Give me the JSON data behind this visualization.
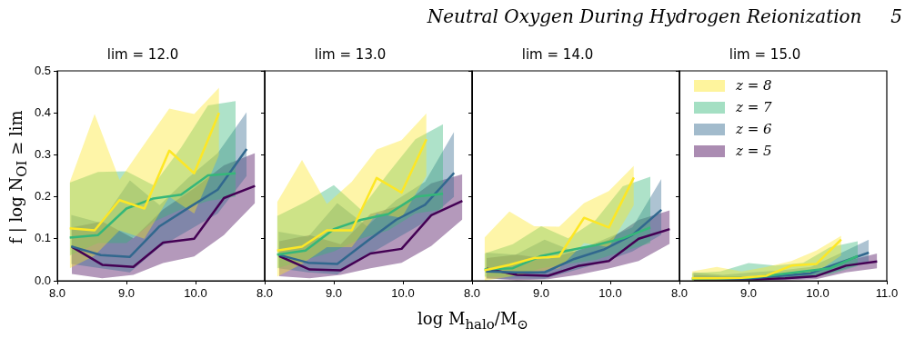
{
  "chart_data": [
    {
      "type": "line",
      "title": "lim = 12.0",
      "ylabel": "f | log N$_{OI}$ ≥ lim",
      "annotations": [
        "Neutral Oxygen During Hydrogen Reionization     5"
      ],
      "xlim": [
        8.0,
        11.0
      ],
      "xticks": [
        {
          "value": 8,
          "label": "8.0"
        },
        {
          "value": 9,
          "label": "9.0"
        },
        {
          "value": 10,
          "label": "10.0"
        },
        {
          "value": 11,
          "label": null
        }
      ],
      "ylim": [
        0,
        0.5
      ],
      "yticks": [
        {
          "value": 0,
          "label": "0.0"
        },
        {
          "value": 0.1,
          "label": "0.1"
        },
        {
          "value": 0.2,
          "label": "0.2"
        },
        {
          "value": 0.3,
          "label": "0.3"
        },
        {
          "value": 0.4,
          "label": "0.4"
        },
        {
          "value": 0.5,
          "label": "0.5"
        }
      ],
      "legend": false,
      "series": [
        {
          "color": "#fde725",
          "x": [
            8.18,
            8.54,
            8.9,
            9.26,
            9.62,
            9.98,
            10.34
          ],
          "values": [
            0.125,
            0.12,
            0.192,
            0.172,
            0.31,
            0.256,
            0.4
          ],
          "lower": [
            0.03,
            0.06,
            0.12,
            0.1,
            0.2,
            0.16,
            0.3
          ],
          "upper": [
            0.235,
            0.397,
            0.24,
            0.326,
            0.41,
            0.397,
            0.46
          ]
        },
        {
          "color": "#35b779",
          "x": [
            8.18,
            8.59,
            9.0,
            9.39,
            9.79,
            10.18,
            10.58
          ],
          "values": [
            0.103,
            0.109,
            0.172,
            0.196,
            0.205,
            0.251,
            0.256
          ],
          "lower": [
            0.06,
            0.09,
            0.09,
            0.14,
            0.17,
            0.19,
            0.2
          ],
          "upper": [
            0.234,
            0.259,
            0.261,
            0.228,
            0.317,
            0.418,
            0.428
          ]
        },
        {
          "color": "#31688e",
          "x": [
            8.2,
            8.63,
            9.05,
            9.48,
            9.9,
            10.32,
            10.74
          ],
          "values": [
            0.082,
            0.061,
            0.057,
            0.13,
            0.174,
            0.217,
            0.314
          ],
          "lower": [
            0.04,
            0.03,
            0.02,
            0.08,
            0.12,
            0.16,
            0.25
          ],
          "upper": [
            0.157,
            0.138,
            0.239,
            0.18,
            0.246,
            0.304,
            0.402
          ]
        },
        {
          "color": "#440154",
          "x": [
            8.21,
            8.65,
            9.1,
            9.53,
            9.98,
            10.41,
            10.86
          ],
          "values": [
            0.081,
            0.038,
            0.033,
            0.091,
            0.1,
            0.197,
            0.226
          ],
          "lower": [
            0.016,
            0.006,
            0.014,
            0.042,
            0.058,
            0.109,
            0.185
          ],
          "upper": [
            0.127,
            0.141,
            0.101,
            0.17,
            0.22,
            0.275,
            0.304
          ]
        }
      ]
    },
    {
      "type": "line",
      "title": "lim = 13.0",
      "xlabel": "log M$_{halo}$/M$_{⊙}$",
      "xlim": [
        8.0,
        11.0
      ],
      "xticks": [
        {
          "value": 8,
          "label": "8.0"
        },
        {
          "value": 9,
          "label": "9.0"
        },
        {
          "value": 10,
          "label": "10.0"
        },
        {
          "value": 11,
          "label": null
        }
      ],
      "ylim": [
        0,
        0.5
      ],
      "yticks": [
        0,
        0.1,
        0.2,
        0.3,
        0.4,
        0.5
      ],
      "tick_labels": "x",
      "legend": false,
      "series": [
        {
          "color": "#fde725",
          "x": [
            8.18,
            8.54,
            8.9,
            9.26,
            9.62,
            9.98,
            10.34
          ],
          "values": [
            0.072,
            0.081,
            0.12,
            0.12,
            0.245,
            0.21,
            0.337
          ],
          "lower": [
            0.01,
            0.04,
            0.08,
            0.08,
            0.16,
            0.15,
            0.25
          ],
          "upper": [
            0.187,
            0.288,
            0.183,
            0.236,
            0.313,
            0.335,
            0.399
          ]
        },
        {
          "color": "#35b779",
          "x": [
            8.18,
            8.59,
            9.0,
            9.39,
            9.79,
            10.18,
            10.58
          ],
          "values": [
            0.062,
            0.072,
            0.123,
            0.145,
            0.159,
            0.2,
            0.207
          ],
          "lower": [
            0.03,
            0.05,
            0.07,
            0.1,
            0.12,
            0.16,
            0.17
          ],
          "upper": [
            0.154,
            0.188,
            0.228,
            0.17,
            0.257,
            0.337,
            0.373
          ]
        },
        {
          "color": "#31688e",
          "x": [
            8.2,
            8.63,
            9.05,
            9.48,
            9.9,
            10.32,
            10.74
          ],
          "values": [
            0.062,
            0.043,
            0.04,
            0.094,
            0.145,
            0.181,
            0.257
          ],
          "lower": [
            0.03,
            0.02,
            0.015,
            0.06,
            0.1,
            0.14,
            0.2
          ],
          "upper": [
            0.117,
            0.105,
            0.185,
            0.13,
            0.192,
            0.236,
            0.355
          ]
        },
        {
          "color": "#440154",
          "x": [
            8.21,
            8.65,
            9.1,
            9.53,
            9.98,
            10.41,
            10.86
          ],
          "values": [
            0.059,
            0.027,
            0.025,
            0.065,
            0.076,
            0.156,
            0.19
          ],
          "lower": [
            0.011,
            0.006,
            0.014,
            0.03,
            0.043,
            0.083,
            0.146
          ],
          "upper": [
            0.094,
            0.109,
            0.087,
            0.159,
            0.18,
            0.232,
            0.254
          ]
        }
      ]
    },
    {
      "type": "line",
      "title": "lim = 14.0",
      "xlim": [
        8.0,
        11.0
      ],
      "xticks": [
        {
          "value": 8,
          "label": "8.0"
        },
        {
          "value": 9,
          "label": "9.0"
        },
        {
          "value": 10,
          "label": "10.0"
        },
        {
          "value": 11,
          "label": null
        }
      ],
      "ylim": [
        0,
        0.5
      ],
      "yticks": [
        0,
        0.1,
        0.2,
        0.3,
        0.4,
        0.5
      ],
      "tick_labels": "x",
      "legend": false,
      "series": [
        {
          "color": "#fde725",
          "x": [
            8.18,
            8.54,
            8.9,
            9.26,
            9.62,
            9.98,
            10.34
          ],
          "values": [
            0.025,
            0.038,
            0.054,
            0.058,
            0.15,
            0.127,
            0.246
          ],
          "lower": [
            0.0,
            0.01,
            0.02,
            0.03,
            0.09,
            0.08,
            0.18
          ],
          "upper": [
            0.103,
            0.165,
            0.13,
            0.129,
            0.185,
            0.214,
            0.274
          ]
        },
        {
          "color": "#35b779",
          "x": [
            8.18,
            8.59,
            9.0,
            9.39,
            9.79,
            10.18,
            10.58
          ],
          "values": [
            0.027,
            0.03,
            0.059,
            0.072,
            0.085,
            0.101,
            0.127
          ],
          "lower": [
            0.01,
            0.01,
            0.03,
            0.04,
            0.05,
            0.07,
            0.09
          ],
          "upper": [
            0.065,
            0.087,
            0.13,
            0.101,
            0.145,
            0.225,
            0.248
          ]
        },
        {
          "color": "#31688e",
          "x": [
            8.2,
            8.63,
            9.05,
            9.48,
            9.9,
            10.32,
            10.74
          ],
          "values": [
            0.022,
            0.02,
            0.02,
            0.052,
            0.074,
            0.109,
            0.169
          ],
          "lower": [
            0.005,
            0.005,
            0.005,
            0.025,
            0.045,
            0.07,
            0.11
          ],
          "upper": [
            0.067,
            0.062,
            0.098,
            0.069,
            0.098,
            0.127,
            0.243
          ]
        },
        {
          "color": "#440154",
          "x": [
            8.21,
            8.65,
            9.1,
            9.53,
            9.98,
            10.41,
            10.86
          ],
          "values": [
            0.029,
            0.014,
            0.012,
            0.035,
            0.047,
            0.1,
            0.123
          ],
          "lower": [
            0.006,
            0.001,
            0.004,
            0.014,
            0.029,
            0.047,
            0.088
          ],
          "upper": [
            0.054,
            0.062,
            0.052,
            0.072,
            0.098,
            0.145,
            0.168
          ]
        }
      ]
    },
    {
      "type": "line",
      "title": "lim = 15.0",
      "xlim": [
        8.0,
        11.0
      ],
      "xticks": [
        {
          "value": 8,
          "label": "8.0"
        },
        {
          "value": 9,
          "label": "9.0"
        },
        {
          "value": 10,
          "label": "10.0"
        },
        {
          "value": 11,
          "label": "11.0"
        }
      ],
      "ylim": [
        0,
        0.5
      ],
      "yticks": [
        0,
        0.1,
        0.2,
        0.3,
        0.4,
        0.5
      ],
      "tick_labels": "x",
      "legend": "top left",
      "series": [
        {
          "name": "z = 8",
          "color": "#fde725",
          "x": [
            8.18,
            8.54,
            8.9,
            9.26,
            9.62,
            9.98,
            10.34
          ],
          "values": [
            0.006,
            0.006,
            0.007,
            0.012,
            0.036,
            0.04,
            0.098
          ],
          "lower": [
            0.0,
            0.0,
            0.0,
            0.002,
            0.015,
            0.02,
            0.06
          ],
          "upper": [
            0.022,
            0.033,
            0.022,
            0.033,
            0.047,
            0.072,
            0.107
          ]
        },
        {
          "name": "z = 7",
          "color": "#35b779",
          "x": [
            8.18,
            8.59,
            9.0,
            9.39,
            9.79,
            10.18,
            10.58
          ],
          "values": [
            0.005,
            0.006,
            0.007,
            0.014,
            0.022,
            0.03,
            0.059
          ],
          "lower": [
            0.0,
            0.0,
            0.0,
            0.004,
            0.01,
            0.015,
            0.035
          ],
          "upper": [
            0.018,
            0.022,
            0.042,
            0.036,
            0.043,
            0.08,
            0.094
          ]
        },
        {
          "name": "z = 6",
          "color": "#31688e",
          "x": [
            8.2,
            8.63,
            9.05,
            9.48,
            9.9,
            10.32,
            10.74
          ],
          "values": [
            0.006,
            0.005,
            0.006,
            0.012,
            0.018,
            0.043,
            0.067
          ],
          "lower": [
            0.0,
            0.0,
            0.0,
            0.003,
            0.007,
            0.025,
            0.045
          ],
          "upper": [
            0.02,
            0.014,
            0.02,
            0.025,
            0.033,
            0.065,
            0.098
          ]
        },
        {
          "name": "z = 5",
          "color": "#440154",
          "x": [
            8.21,
            8.65,
            9.1,
            9.53,
            9.98,
            10.41,
            10.86
          ],
          "values": [
            0.004,
            0.004,
            0.004,
            0.006,
            0.011,
            0.036,
            0.046
          ],
          "lower": [
            0.0,
            0.0,
            0.0,
            0.001,
            0.004,
            0.02,
            0.03
          ],
          "upper": [
            0.014,
            0.011,
            0.011,
            0.014,
            0.022,
            0.047,
            0.065
          ]
        }
      ]
    }
  ]
}
